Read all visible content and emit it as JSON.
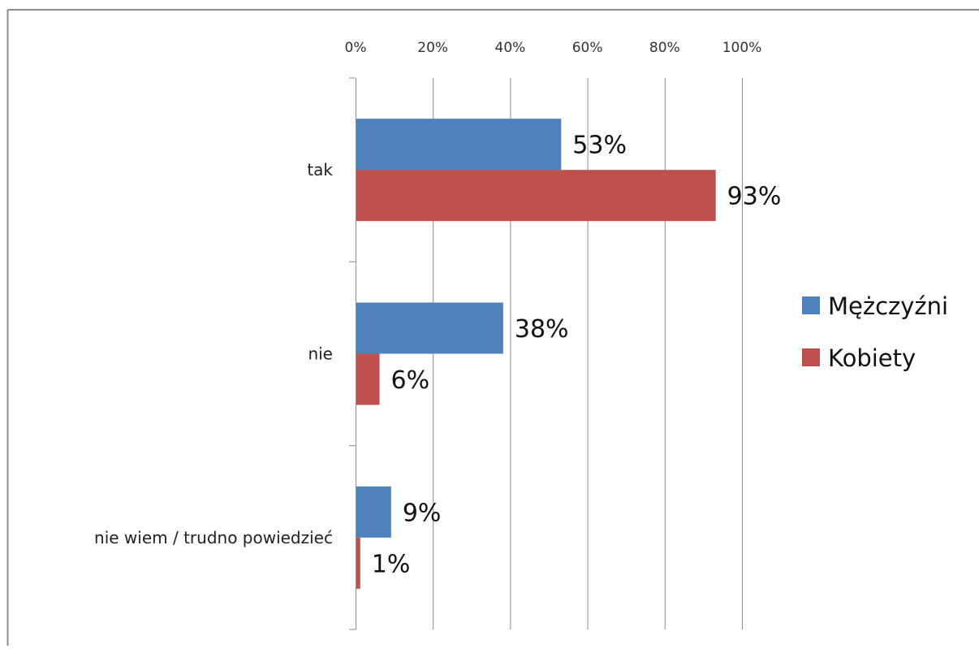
{
  "chart_data": {
    "type": "bar",
    "orientation": "horizontal",
    "categories": [
      "tak",
      "nie",
      "nie wiem / trudno powiedzieć"
    ],
    "series": [
      {
        "name": "Mężczyźni",
        "values": [
          53,
          38,
          9
        ],
        "labels": [
          "53%",
          "38%",
          "9%"
        ],
        "color": "#4f81bd"
      },
      {
        "name": "Kobiety",
        "values": [
          93,
          6,
          1
        ],
        "labels": [
          "93%",
          "6%",
          "1%"
        ],
        "color": "#c0504d"
      }
    ],
    "xlim": [
      0,
      100
    ],
    "x_ticks": [
      0,
      20,
      40,
      60,
      80,
      100
    ],
    "x_tick_labels": [
      "0%",
      "20%",
      "40%",
      "60%",
      "80%",
      "100%"
    ],
    "x_axis_position": "top",
    "grid": true,
    "legend_position": "right",
    "title": "",
    "xlabel": "",
    "ylabel": ""
  },
  "colors": {
    "gridline": "#8c8c8c",
    "axis": "#8c8c8c",
    "frame": "#8c8c8c"
  }
}
